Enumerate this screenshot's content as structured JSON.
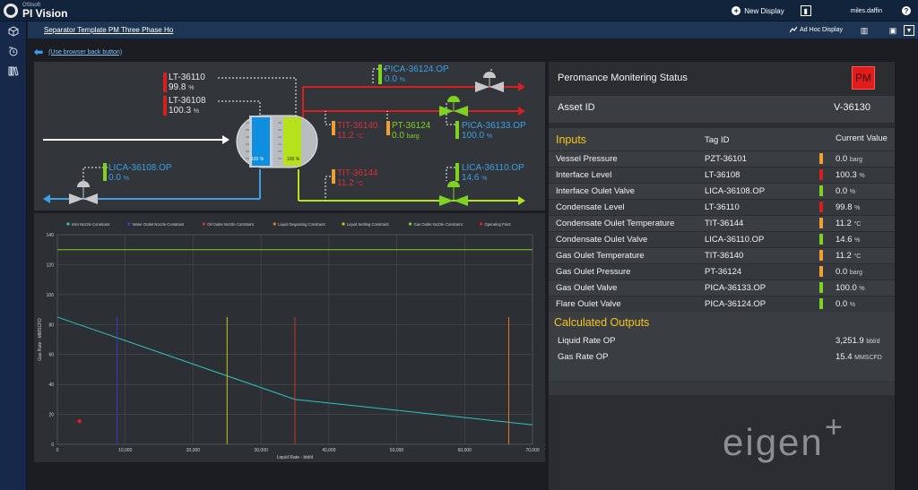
{
  "app": {
    "brand_small": "OSIsoft",
    "brand_big": "PI Vision",
    "new_display": "New Display",
    "user": "miles.daffin",
    "help": "?"
  },
  "subbar": {
    "breadcrumb": "Separator Template PM Three Phase Ho",
    "ad_hoc": "Ad Hoc Display"
  },
  "back_link": "(Use browser back button)",
  "diagram": {
    "tags": [
      {
        "name": "LT-36110",
        "value": "99.8",
        "unit": "%",
        "color": "#e8e8e8",
        "bar": "#d62020"
      },
      {
        "name": "LT-36108",
        "value": "100.3",
        "unit": "%",
        "color": "#e8e8e8",
        "bar": "#d62020"
      },
      {
        "name": "PICA-36124.OP",
        "value": "0.0",
        "unit": "%",
        "color": "#3aa0e8",
        "bar": "#7ed321"
      },
      {
        "name": "TIT-36140",
        "value": "11.2",
        "unit": "°C",
        "color": "#d6303a",
        "bar": "#f0a030"
      },
      {
        "name": "PT-36124",
        "value": "0.0",
        "unit": "barg",
        "color": "#7ed321",
        "bar": "#f0a030"
      },
      {
        "name": "PICA-36133.OP",
        "value": "100.0",
        "unit": "%",
        "color": "#3aa0e8",
        "bar": "#7ed321"
      },
      {
        "name": "TIT-36144",
        "value": "11.2",
        "unit": "°C",
        "color": "#d6303a",
        "bar": "#f0a030"
      },
      {
        "name": "LICA-36110.OP",
        "value": "14.6",
        "unit": "%",
        "color": "#3aa0e8",
        "bar": "#7ed321"
      },
      {
        "name": "LICA-36108.OP",
        "value": "0.0",
        "unit": "%",
        "color": "#3aa0e8",
        "bar": "#7ed321"
      }
    ],
    "vessel_left_level": "100 %",
    "vessel_right_level": "100 %"
  },
  "status": {
    "title": "Peromance Monitering Status",
    "badge": "PM",
    "asset_label": "Asset ID",
    "asset_value": "V-36130",
    "inputs_heading": "Inputs",
    "col_tag": "Tag ID",
    "col_value": "Current Value",
    "inputs": [
      {
        "name": "Vessel Pressure",
        "tag": "PZT-36101",
        "value": "0.0",
        "unit": "barg",
        "bar": "#f0a030"
      },
      {
        "name": "Interface Level",
        "tag": "LT-36108",
        "value": "100.3",
        "unit": "%",
        "bar": "#d62020"
      },
      {
        "name": "Interface Oulet Valve",
        "tag": "LICA-36108.OP",
        "value": "0.0",
        "unit": "%",
        "bar": "#7ed321"
      },
      {
        "name": "Condensate Level",
        "tag": "LT-36110",
        "value": "99.8",
        "unit": "%",
        "bar": "#d62020"
      },
      {
        "name": "Condensate Oulet Temperature",
        "tag": "TIT-36144",
        "value": "11.2",
        "unit": "°C",
        "bar": "#f0a030"
      },
      {
        "name": "Condensate Oulet Valve",
        "tag": "LICA-36110.OP",
        "value": "14.6",
        "unit": "%",
        "bar": "#7ed321"
      },
      {
        "name": "Gas Oulet Temperature",
        "tag": "TIT-36140",
        "value": "11.2",
        "unit": "°C",
        "bar": "#f0a030"
      },
      {
        "name": "Gas Oulet Pressure",
        "tag": "PT-36124",
        "value": "0.0",
        "unit": "barg",
        "bar": "#f0a030"
      },
      {
        "name": "Gas Oulet Valve",
        "tag": "PICA-36133.OP",
        "value": "100.0",
        "unit": "%",
        "bar": "#7ed321"
      },
      {
        "name": "Flare Oulet Valve",
        "tag": "PICA-36124.OP",
        "value": "0.0",
        "unit": "%",
        "bar": "#7ed321"
      }
    ],
    "outputs_heading": "Calculated Outputs",
    "outputs": [
      {
        "name": "Liquid Rate OP",
        "value": "3,251.9",
        "unit": "bbl/d"
      },
      {
        "name": "Gas Rate OP",
        "value": "15.4",
        "unit": "MMSCFD"
      }
    ]
  },
  "watermark": {
    "text": "eigen",
    "plus": "+"
  },
  "chart_data": {
    "type": "line",
    "xlabel": "Liquid Rate - bbl/d",
    "ylabel": "Gas Rate - MMSCFD",
    "xlim": [
      0,
      70000
    ],
    "ylim": [
      0,
      140
    ],
    "xticks": [
      0,
      10000,
      20000,
      30000,
      40000,
      50000,
      60000,
      70000
    ],
    "xtick_labels": [
      "0",
      "10,000",
      "20,000",
      "30,000",
      "40,000",
      "50,000",
      "60,000",
      "70,000"
    ],
    "yticks": [
      0,
      20,
      40,
      60,
      80,
      100,
      120,
      140
    ],
    "legend": [
      {
        "name": "Inlet Nozzle Constraint",
        "color": "#2ec4c4"
      },
      {
        "name": "Water Outlet Nozzle Constraint",
        "color": "#3a3ad0"
      },
      {
        "name": "Oil Outlet Nozzle Constraint",
        "color": "#c83a2a"
      },
      {
        "name": "Liquid Degassing Constraint",
        "color": "#e07a2a"
      },
      {
        "name": "Liquid Settling Constraint",
        "color": "#c8c22a"
      },
      {
        "name": "Gas Outlet Nozzle Constraint",
        "color": "#7ad02a"
      },
      {
        "name": "Operating Point",
        "color": "#e02020"
      }
    ],
    "series": [
      {
        "name": "Inlet Nozzle Constraint",
        "kind": "line",
        "x": [
          0,
          35000,
          70000
        ],
        "y": [
          85,
          30,
          13
        ]
      },
      {
        "name": "Water Outlet Nozzle Constraint",
        "kind": "vline",
        "x": 8800,
        "y": [
          0,
          85
        ]
      },
      {
        "name": "Liquid Settling Constraint",
        "kind": "vline",
        "x": 25000,
        "y": [
          0,
          85
        ]
      },
      {
        "name": "Oil Outlet Nozzle Constraint",
        "kind": "vline",
        "x": 35000,
        "y": [
          0,
          85
        ]
      },
      {
        "name": "Liquid Degassing Constraint",
        "kind": "vline",
        "x": 66500,
        "y": [
          0,
          85
        ]
      },
      {
        "name": "Gas Outlet Nozzle Constraint",
        "kind": "hline",
        "x": [
          0,
          70000
        ],
        "y": 130
      },
      {
        "name": "Operating Point",
        "kind": "point",
        "x": 3252,
        "y": 15.4
      }
    ]
  }
}
